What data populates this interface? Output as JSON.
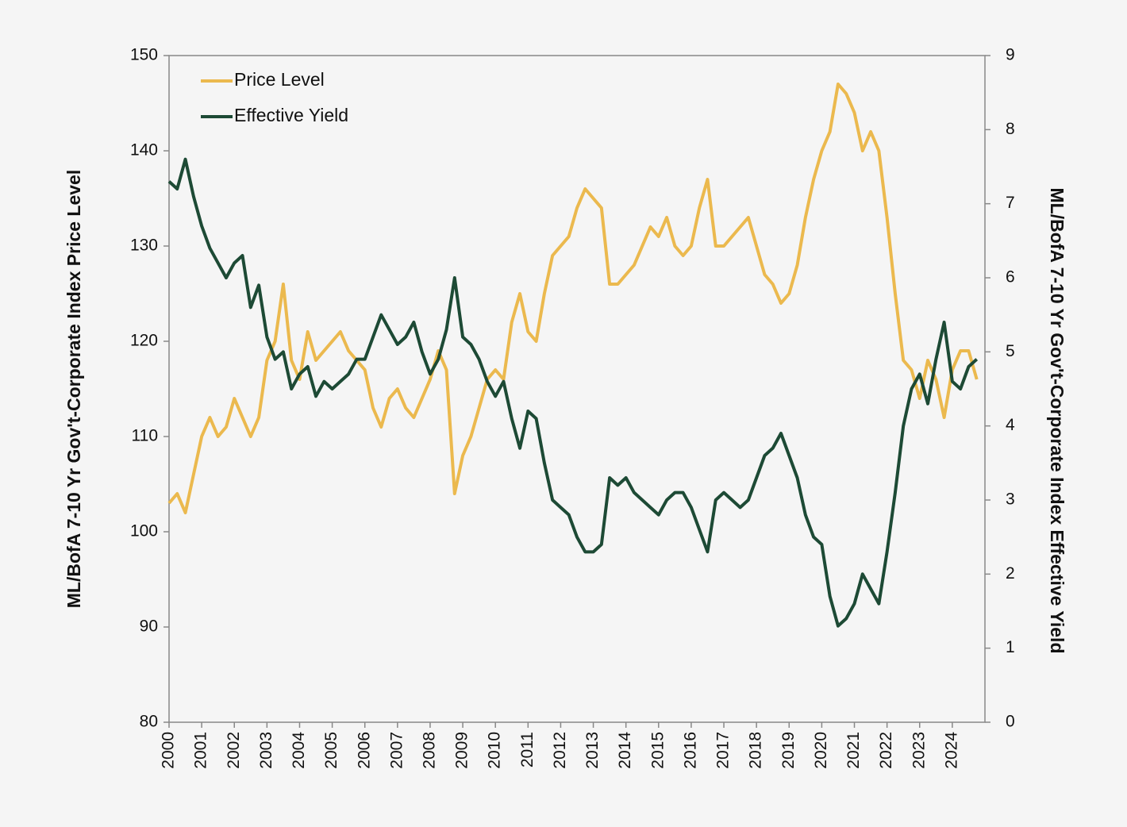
{
  "chart_data": {
    "type": "line",
    "ylabel": "ML/BofA 7-10 Yr Gov't-Corporate Index Price Level",
    "y2label": "ML/BofA 7-10 Yr Gov't-Corporate Index Effective Yield",
    "x": [
      2000,
      2000.25,
      2000.5,
      2000.75,
      2001,
      2001.25,
      2001.5,
      2001.75,
      2002,
      2002.25,
      2002.5,
      2002.75,
      2003,
      2003.25,
      2003.5,
      2003.75,
      2004,
      2004.25,
      2004.5,
      2004.75,
      2005,
      2005.25,
      2005.5,
      2005.75,
      2006,
      2006.25,
      2006.5,
      2006.75,
      2007,
      2007.25,
      2007.5,
      2007.75,
      2008,
      2008.25,
      2008.5,
      2008.75,
      2009,
      2009.25,
      2009.5,
      2009.75,
      2010,
      2010.25,
      2010.5,
      2010.75,
      2011,
      2011.25,
      2011.5,
      2011.75,
      2012,
      2012.25,
      2012.5,
      2012.75,
      2013,
      2013.25,
      2013.5,
      2013.75,
      2014,
      2014.25,
      2014.5,
      2014.75,
      2015,
      2015.25,
      2015.5,
      2015.75,
      2016,
      2016.25,
      2016.5,
      2016.75,
      2017,
      2017.25,
      2017.5,
      2017.75,
      2018,
      2018.25,
      2018.5,
      2018.75,
      2019,
      2019.25,
      2019.5,
      2019.75,
      2020,
      2020.25,
      2020.5,
      2020.75,
      2021,
      2021.25,
      2021.5,
      2021.75,
      2022,
      2022.25,
      2022.5,
      2022.75,
      2023,
      2023.25,
      2023.5,
      2023.75,
      2024,
      2024.25,
      2024.5,
      2024.75
    ],
    "series": [
      {
        "name": "Price Level",
        "color": "#ebb94e",
        "axis": "y",
        "values": [
          103,
          104,
          102,
          106,
          110,
          112,
          110,
          111,
          114,
          112,
          110,
          112,
          118,
          120,
          126,
          118,
          116,
          121,
          118,
          119,
          120,
          121,
          119,
          118,
          117,
          113,
          111,
          114,
          115,
          113,
          112,
          114,
          116,
          119,
          117,
          104,
          108,
          110,
          113,
          116,
          117,
          116,
          122,
          125,
          121,
          120,
          125,
          129,
          130,
          131,
          134,
          136,
          135,
          134,
          126,
          126,
          127,
          128,
          130,
          132,
          131,
          133,
          130,
          129,
          130,
          134,
          137,
          130,
          130,
          131,
          132,
          133,
          130,
          127,
          126,
          124,
          125,
          128,
          133,
          137,
          140,
          142,
          147,
          146,
          144,
          140,
          142,
          140,
          133,
          125,
          118,
          117,
          114,
          118,
          116,
          112,
          117,
          119,
          119,
          116
        ]
      },
      {
        "name": "Effective Yield",
        "color": "#1d4a35",
        "axis": "y2",
        "values": [
          7.3,
          7.2,
          7.6,
          7.1,
          6.7,
          6.4,
          6.2,
          6.0,
          6.2,
          6.3,
          5.6,
          5.9,
          5.2,
          4.9,
          5.0,
          4.5,
          4.7,
          4.8,
          4.4,
          4.6,
          4.5,
          4.6,
          4.7,
          4.9,
          4.9,
          5.2,
          5.5,
          5.3,
          5.1,
          5.2,
          5.4,
          5.0,
          4.7,
          4.9,
          5.3,
          6.0,
          5.2,
          5.1,
          4.9,
          4.6,
          4.4,
          4.6,
          4.1,
          3.7,
          4.2,
          4.1,
          3.5,
          3.0,
          2.9,
          2.8,
          2.5,
          2.3,
          2.3,
          2.4,
          3.3,
          3.2,
          3.3,
          3.1,
          3.0,
          2.9,
          2.8,
          3.0,
          3.1,
          3.1,
          2.9,
          2.6,
          2.3,
          3.0,
          3.1,
          3.0,
          2.9,
          3.0,
          3.3,
          3.6,
          3.7,
          3.9,
          3.6,
          3.3,
          2.8,
          2.5,
          2.4,
          1.7,
          1.3,
          1.4,
          1.6,
          2.0,
          1.8,
          1.6,
          2.3,
          3.1,
          4.0,
          4.5,
          4.7,
          4.3,
          4.9,
          5.4,
          4.6,
          4.5,
          4.8,
          4.9
        ]
      }
    ],
    "xlim": [
      2000,
      2025
    ],
    "xticks": [
      2000,
      2001,
      2002,
      2003,
      2004,
      2005,
      2006,
      2007,
      2008,
      2009,
      2010,
      2011,
      2012,
      2013,
      2014,
      2015,
      2016,
      2017,
      2018,
      2019,
      2020,
      2021,
      2022,
      2023,
      2024
    ],
    "ylim": [
      80,
      150
    ],
    "yticks": [
      80,
      90,
      100,
      110,
      120,
      130,
      140,
      150
    ],
    "y2lim": [
      0,
      9
    ],
    "y2ticks": [
      0,
      1,
      2,
      3,
      4,
      5,
      6,
      7,
      8,
      9
    ],
    "legend": "upper left"
  }
}
